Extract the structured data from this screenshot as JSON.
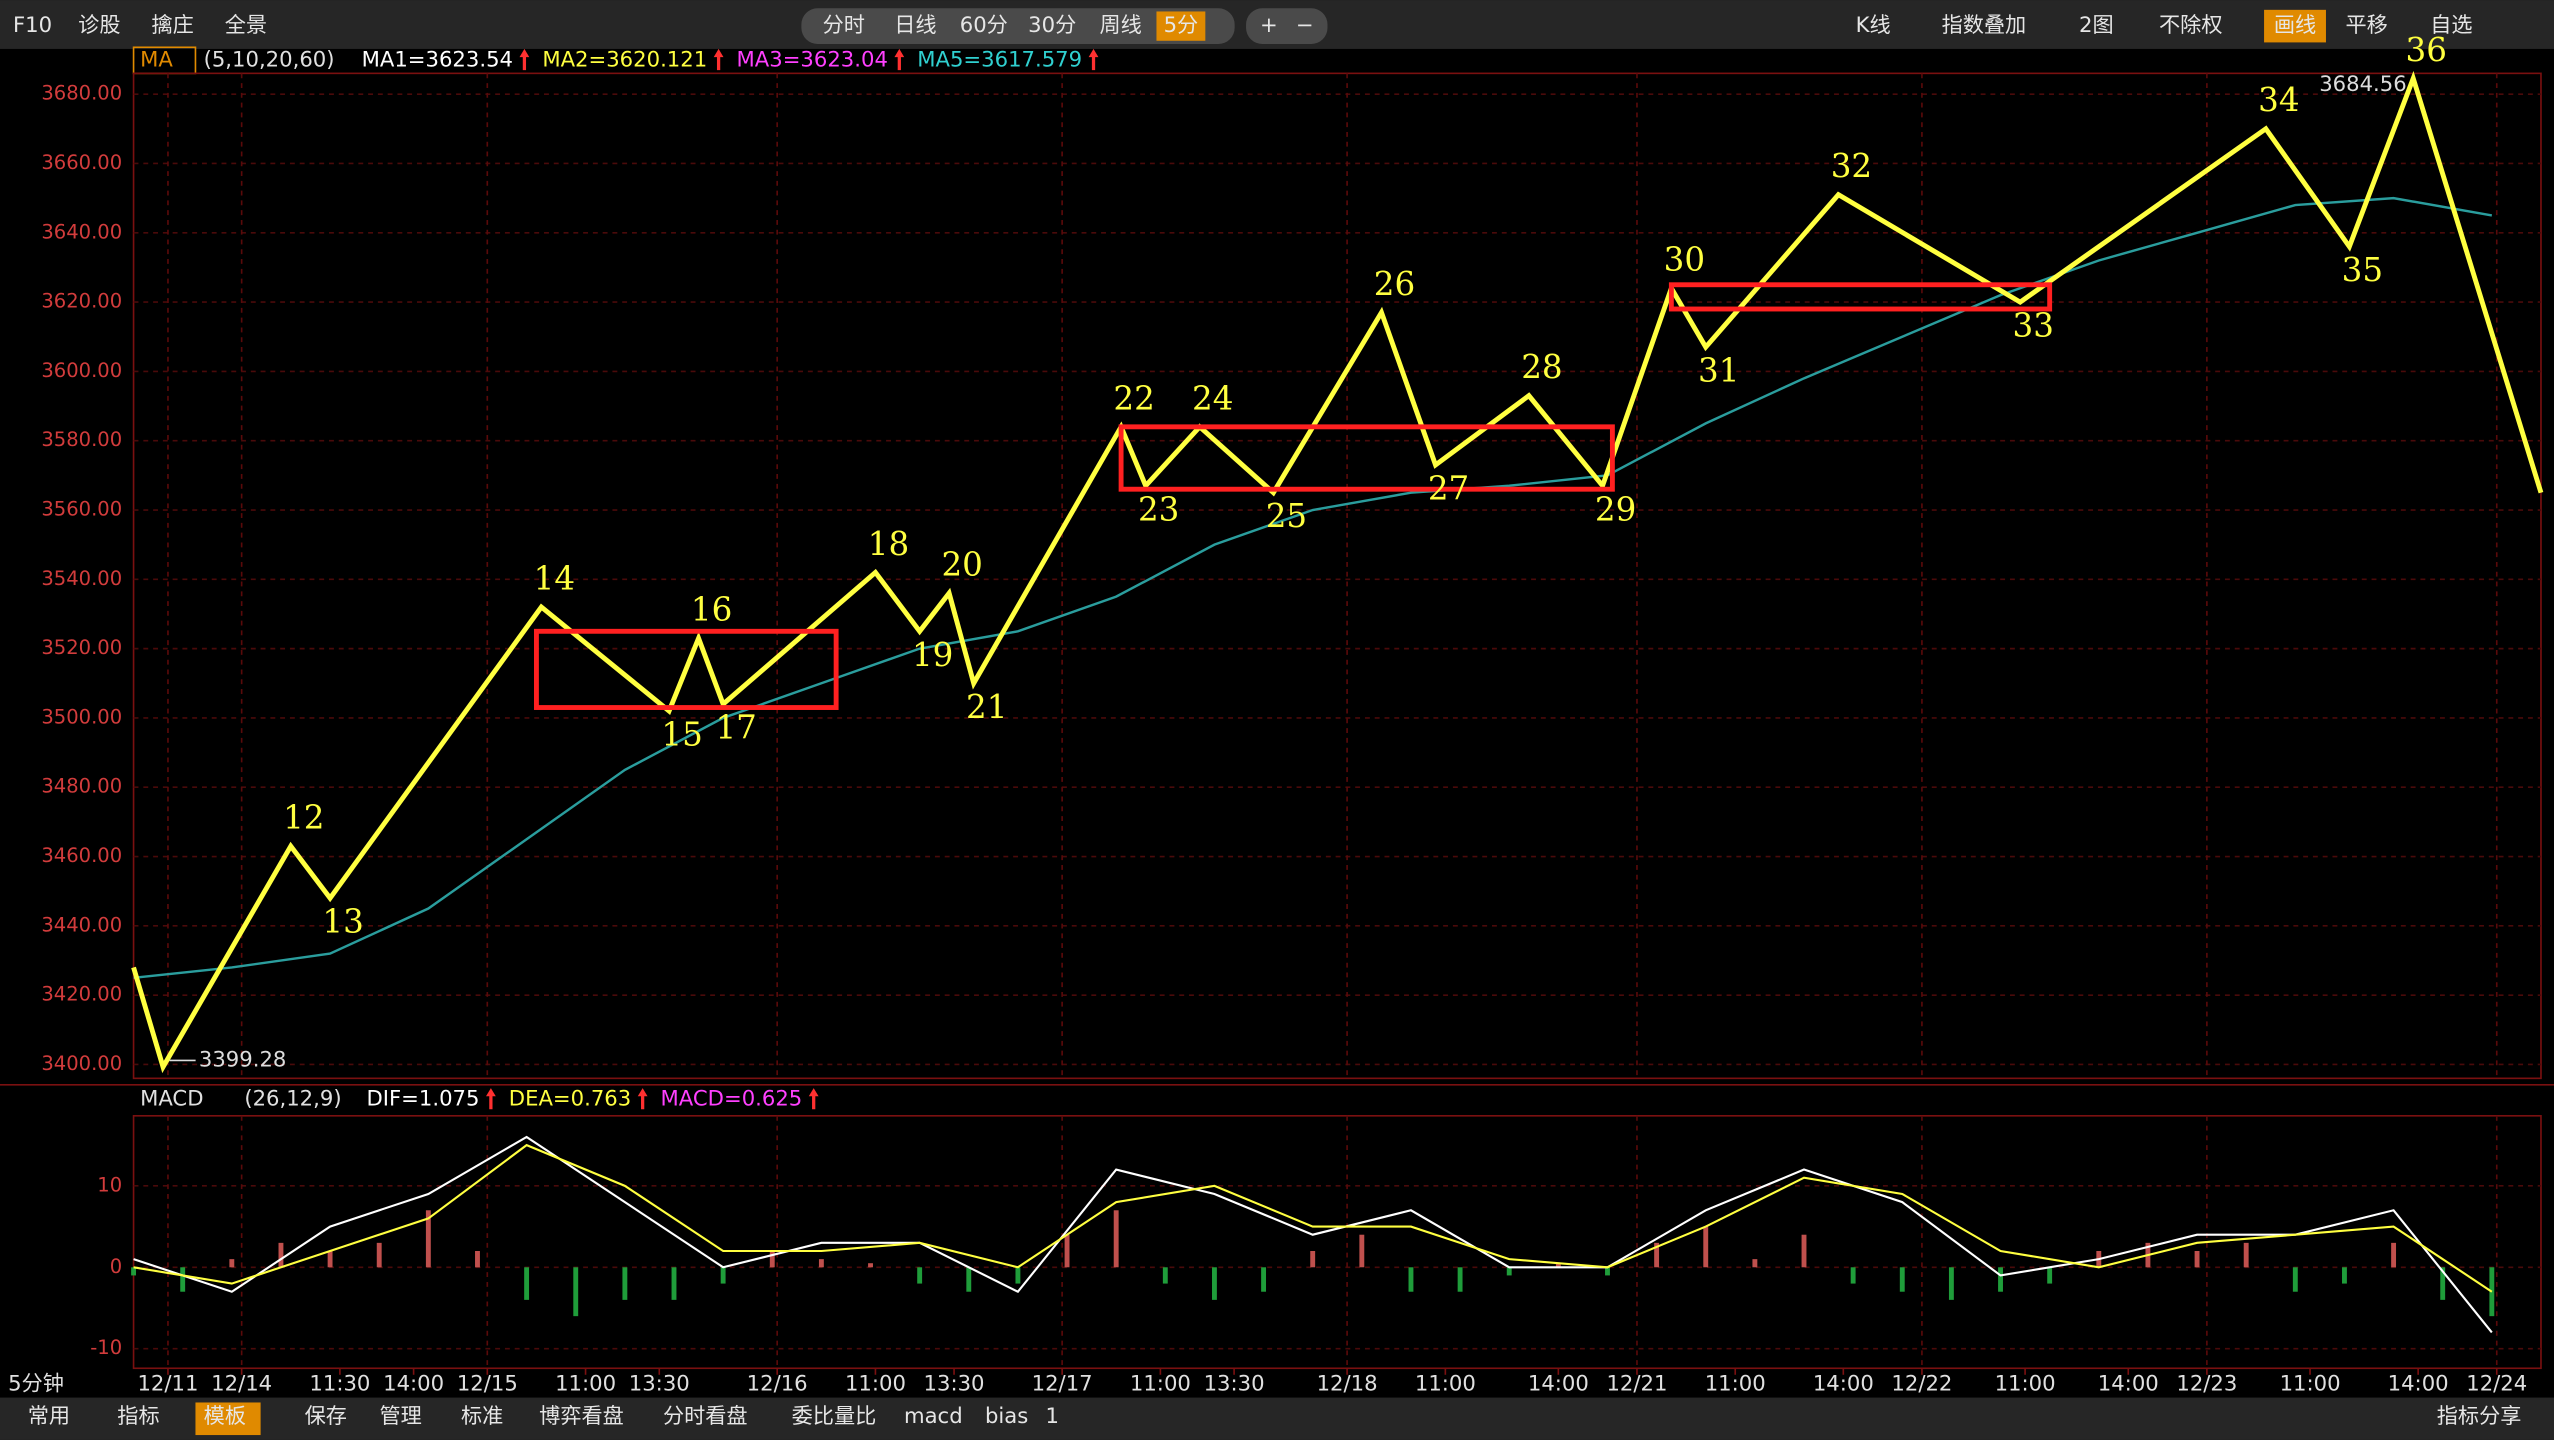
{
  "toolbar": {
    "left": [
      "F10",
      "诊股",
      "擒庄",
      "全景"
    ],
    "periods": [
      "分时",
      "日线",
      "60分",
      "30分",
      "周线",
      "5分"
    ],
    "zoom": [
      "+",
      "−"
    ],
    "right": [
      "K线",
      "指数叠加",
      "2图",
      "不除权",
      "画线",
      "平移",
      "自选"
    ]
  },
  "indicator_legend": {
    "name": "MA",
    "params": "(5,10,20,60)",
    "items": [
      {
        "text": "MA1=3623.54",
        "color": "#ffffff"
      },
      {
        "text": "MA2=3620.121",
        "color": "#ffff40"
      },
      {
        "text": "MA3=3623.04",
        "color": "#ff40ff"
      },
      {
        "text": "MA5=3617.579",
        "color": "#30d0d0"
      }
    ]
  },
  "macd_legend": {
    "name": "MACD",
    "params": "(26,12,9)",
    "items": [
      {
        "text": "DIF=1.075",
        "color": "#ffffff"
      },
      {
        "text": "DEA=0.763",
        "color": "#ffff40"
      },
      {
        "text": "MACD=0.625",
        "color": "#ff40ff"
      }
    ]
  },
  "period_label": "5分钟",
  "bottom_toolbar": {
    "left": [
      "常用",
      "指标",
      "模板",
      "保存",
      "管理",
      "标准",
      "博弈看盘",
      "分时看盘",
      "委比量比",
      "macd",
      "bias",
      "1"
    ],
    "right": "指标分享"
  },
  "chart_data": [
    {
      "type": "line",
      "xlim": [
        0,
        490
      ],
      "ylim": [
        3396,
        3686
      ],
      "yticks": [
        {
          "value": 3400,
          "label": "3400.00"
        },
        {
          "value": 3420,
          "label": "3420.00"
        },
        {
          "value": 3440,
          "label": "3440.00"
        },
        {
          "value": 3460,
          "label": "3460.00"
        },
        {
          "value": 3480,
          "label": "3480.00"
        },
        {
          "value": 3500,
          "label": "3500.00"
        },
        {
          "value": 3520,
          "label": "3520.00"
        },
        {
          "value": 3540,
          "label": "3540.00"
        },
        {
          "value": 3560,
          "label": "3560.00"
        },
        {
          "value": 3580,
          "label": "3580.00"
        },
        {
          "value": 3600,
          "label": "3600.00"
        },
        {
          "value": 3620,
          "label": "3620.00"
        },
        {
          "value": 3640,
          "label": "3640.00"
        },
        {
          "value": 3660,
          "label": "3660.00"
        },
        {
          "value": 3680,
          "label": "3680.00"
        }
      ],
      "xticks": [
        {
          "value": 7,
          "label": "12/11"
        },
        {
          "value": 22,
          "label": "12/14"
        },
        {
          "value": 42,
          "label": "11:30"
        },
        {
          "value": 57,
          "label": "14:00"
        },
        {
          "value": 72,
          "label": "12/15"
        },
        {
          "value": 92,
          "label": "11:00"
        },
        {
          "value": 107,
          "label": "13:30"
        },
        {
          "value": 131,
          "label": "12/16"
        },
        {
          "value": 151,
          "label": "11:00"
        },
        {
          "value": 167,
          "label": "13:30"
        },
        {
          "value": 189,
          "label": "12/17"
        },
        {
          "value": 209,
          "label": "11:00"
        },
        {
          "value": 224,
          "label": "13:30"
        },
        {
          "value": 247,
          "label": "12/18"
        },
        {
          "value": 267,
          "label": "11:00"
        },
        {
          "value": 290,
          "label": "14:00"
        },
        {
          "value": 306,
          "label": "12/21"
        },
        {
          "value": 326,
          "label": "11:00"
        },
        {
          "value": 348,
          "label": "14:00"
        },
        {
          "value": 364,
          "label": "12/22"
        },
        {
          "value": 385,
          "label": "11:00"
        },
        {
          "value": 406,
          "label": "14:00"
        },
        {
          "value": 422,
          "label": "12/23"
        },
        {
          "value": 443,
          "label": "11:00"
        },
        {
          "value": 465,
          "label": "14:00"
        },
        {
          "value": 481,
          "label": "12/24"
        }
      ],
      "series": [
        {
          "color": "#ffff40",
          "x": [
            0,
            6,
            32,
            40,
            83,
            109,
            115,
            120,
            151,
            160,
            166,
            171,
            201,
            206,
            217,
            232,
            254,
            265,
            284,
            299,
            313,
            320,
            347,
            384,
            434,
            451,
            464,
            490
          ],
          "values": [
            3428,
            3399.28,
            3463,
            3448,
            3532,
            3502,
            3523,
            3504,
            3542,
            3525,
            3536,
            3510,
            3584,
            3567,
            3584,
            3565,
            3617,
            3573,
            3593,
            3567,
            3624,
            3607,
            3651,
            3620,
            3670,
            3636,
            3684.56,
            3565
          ],
          "point_labels": [
            null,
            null,
            "12",
            "13",
            "14",
            "15",
            "16",
            "17",
            "18",
            "19",
            "20",
            "21",
            "22",
            "23",
            "24",
            "25",
            "26",
            "27",
            "28",
            "29",
            "30",
            "31",
            "32",
            "33",
            "34",
            "35",
            "36",
            null
          ]
        },
        {
          "color": "#2a9d9d",
          "x": [
            0,
            20,
            40,
            60,
            80,
            100,
            120,
            140,
            160,
            180,
            200,
            220,
            240,
            260,
            280,
            300,
            320,
            340,
            360,
            380,
            400,
            420,
            440,
            460,
            480
          ],
          "values": [
            3425,
            3428,
            3432,
            3445,
            3465,
            3485,
            3500,
            3510,
            3520,
            3525,
            3535,
            3550,
            3560,
            3565,
            3567,
            3570,
            3585,
            3598,
            3610,
            3622,
            3632,
            3640,
            3648,
            3650,
            3645
          ]
        }
      ],
      "boxes": [
        {
          "color": "#ff2020",
          "x": [
            82,
            143
          ],
          "y": [
            3503,
            3525
          ]
        },
        {
          "color": "#ff2020",
          "x": [
            201,
            301
          ],
          "y": [
            3566,
            3584
          ]
        },
        {
          "color": "#ff2020",
          "x": [
            313,
            390
          ],
          "y": [
            3618,
            3625
          ]
        }
      ],
      "annotations": [
        {
          "text": "3399.28",
          "x": 6,
          "y": 3399.28
        },
        {
          "text": "3684.56",
          "x": 464,
          "y": 3684.56
        }
      ]
    },
    {
      "type": "macd",
      "xlim": [
        0,
        490
      ],
      "ylim": [
        -12.4,
        18.6
      ],
      "yticks": [
        -10,
        0,
        10
      ],
      "series": [
        {
          "color": "#ffffff",
          "x": [
            0,
            20,
            40,
            60,
            80,
            100,
            120,
            140,
            160,
            180,
            200,
            220,
            240,
            260,
            280,
            300,
            320,
            340,
            360,
            380,
            400,
            420,
            440,
            460,
            480
          ],
          "values": [
            1,
            -3,
            5,
            9,
            16,
            8,
            0,
            3,
            3,
            -3,
            12,
            9,
            4,
            7,
            0,
            0,
            7,
            12,
            8,
            -1,
            1,
            4,
            4,
            7,
            -8
          ]
        },
        {
          "color": "#ffff40",
          "x": [
            0,
            20,
            40,
            60,
            80,
            100,
            120,
            140,
            160,
            180,
            200,
            220,
            240,
            260,
            280,
            300,
            320,
            340,
            360,
            380,
            400,
            420,
            440,
            460,
            480
          ],
          "values": [
            0,
            -2,
            2,
            6,
            15,
            10,
            2,
            2,
            3,
            0,
            8,
            10,
            5,
            5,
            1,
            0,
            5,
            11,
            9,
            2,
            0,
            3,
            4,
            5,
            -3
          ]
        }
      ],
      "bars": {
        "colors": [
          "#c0504d",
          "#1f9d3a"
        ],
        "x": [
          0,
          10,
          20,
          30,
          40,
          50,
          60,
          70,
          80,
          90,
          100,
          110,
          120,
          130,
          140,
          150,
          160,
          170,
          180,
          190,
          200,
          210,
          220,
          230,
          240,
          250,
          260,
          270,
          280,
          290,
          300,
          310,
          320,
          330,
          340,
          350,
          360,
          370,
          380,
          390,
          400,
          410,
          420,
          430,
          440,
          450,
          460,
          470,
          480
        ],
        "values": [
          -1,
          -3,
          1,
          3,
          2,
          3,
          7,
          2,
          -4,
          -6,
          -4,
          -4,
          -2,
          2,
          1,
          0.5,
          -2,
          -3,
          -2,
          4,
          7,
          -2,
          -4,
          -3,
          2,
          4,
          -3,
          -3,
          -1,
          0.5,
          -1,
          3,
          5,
          1,
          4,
          -2,
          -3,
          -4,
          -3,
          -2,
          2,
          3,
          2,
          3,
          -3,
          -2,
          3,
          -4,
          -6
        ]
      }
    }
  ]
}
